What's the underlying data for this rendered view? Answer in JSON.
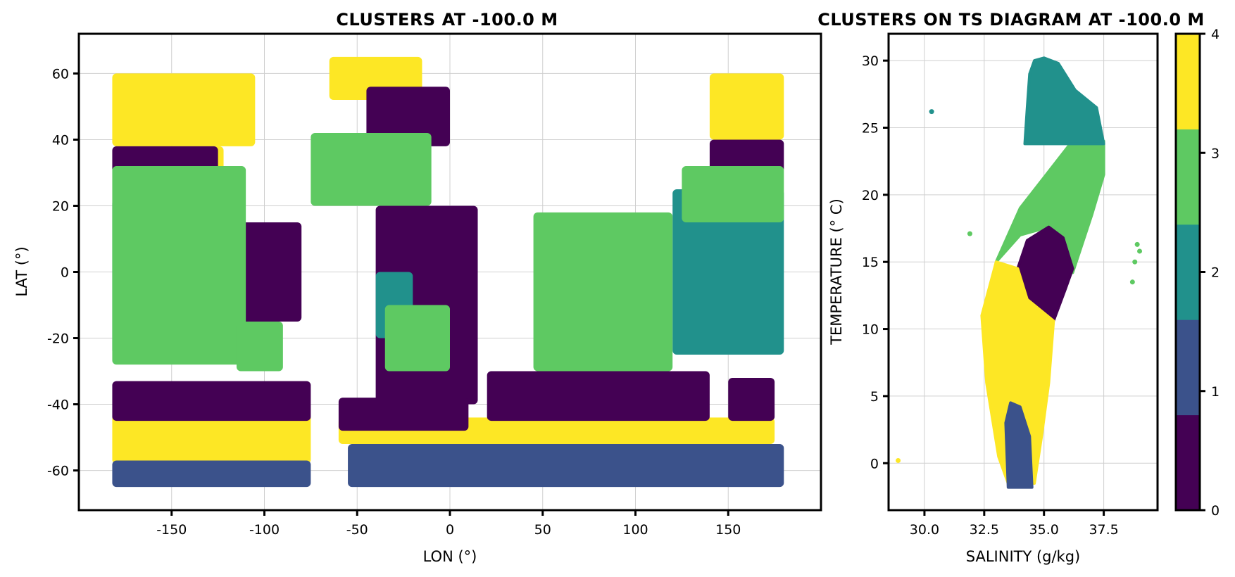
{
  "figure": {
    "cluster_colors": [
      "#440154",
      "#3b528b",
      "#21918c",
      "#5ec962",
      "#fde725"
    ],
    "colorbar": {
      "ticks": [
        "0",
        "1",
        "2",
        "3",
        "4"
      ]
    }
  },
  "chart_data": [
    {
      "type": "scatter",
      "title": "CLUSTERS AT -100.0 M",
      "xlabel": "LON (°)",
      "ylabel": "LAT (°)",
      "xlim": [
        -200,
        200
      ],
      "ylim": [
        -72,
        72
      ],
      "xticks": [
        -150,
        -100,
        -50,
        0,
        50,
        100,
        150
      ],
      "yticks": [
        60,
        40,
        20,
        0,
        -20,
        -40,
        -60
      ],
      "xtick_labels": [
        "-150",
        "-100",
        "-50",
        "0",
        "50",
        "100",
        "150"
      ],
      "ytick_labels": [
        "60",
        "40",
        "20",
        "0",
        "-20",
        "-40",
        "-60"
      ],
      "grid": true,
      "clusters": [
        {
          "cluster": 4,
          "regions": [
            {
              "x": [
                -182,
                -105
              ],
              "y": [
                38,
                60
              ]
            },
            {
              "x": [
                -140,
                -122
              ],
              "y": [
                22,
                38
              ]
            },
            {
              "x": [
                -182,
                -75
              ],
              "y": [
                -58,
                -43
              ]
            },
            {
              "x": [
                -65,
                -15
              ],
              "y": [
                52,
                65
              ]
            },
            {
              "x": [
                140,
                180
              ],
              "y": [
                40,
                60
              ]
            },
            {
              "x": [
                -60,
                175
              ],
              "y": [
                -52,
                -44
              ]
            }
          ]
        },
        {
          "cluster": 1,
          "regions": [
            {
              "x": [
                -182,
                -75
              ],
              "y": [
                -65,
                -57
              ]
            },
            {
              "x": [
                -55,
                180
              ],
              "y": [
                -65,
                -52
              ]
            }
          ]
        },
        {
          "cluster": 0,
          "regions": [
            {
              "x": [
                -182,
                -125
              ],
              "y": [
                30,
                38
              ]
            },
            {
              "x": [
                -130,
                -80
              ],
              "y": [
                -15,
                15
              ]
            },
            {
              "x": [
                -182,
                -75
              ],
              "y": [
                -45,
                -33
              ]
            },
            {
              "x": [
                -45,
                0
              ],
              "y": [
                38,
                56
              ]
            },
            {
              "x": [
                -40,
                15
              ],
              "y": [
                -40,
                20
              ]
            },
            {
              "x": [
                -60,
                10
              ],
              "y": [
                -48,
                -38
              ]
            },
            {
              "x": [
                20,
                140
              ],
              "y": [
                -45,
                -30
              ]
            },
            {
              "x": [
                140,
                180
              ],
              "y": [
                30,
                40
              ]
            },
            {
              "x": [
                150,
                175
              ],
              "y": [
                -45,
                -32
              ]
            }
          ]
        },
        {
          "cluster": 2,
          "regions": [
            {
              "x": [
                -182,
                -115
              ],
              "y": [
                -25,
                22
              ]
            },
            {
              "x": [
                -40,
                -20
              ],
              "y": [
                -20,
                0
              ]
            },
            {
              "x": [
                50,
                105
              ],
              "y": [
                -10,
                15
              ]
            },
            {
              "x": [
                120,
                180
              ],
              "y": [
                -25,
                25
              ]
            }
          ]
        },
        {
          "cluster": 3,
          "regions": [
            {
              "x": [
                -182,
                -110
              ],
              "y": [
                -28,
                32
              ]
            },
            {
              "x": [
                -115,
                -90
              ],
              "y": [
                -30,
                -15
              ]
            },
            {
              "x": [
                -75,
                -10
              ],
              "y": [
                20,
                42
              ]
            },
            {
              "x": [
                -35,
                0
              ],
              "y": [
                -30,
                -10
              ]
            },
            {
              "x": [
                45,
                120
              ],
              "y": [
                -30,
                18
              ]
            },
            {
              "x": [
                125,
                180
              ],
              "y": [
                15,
                32
              ]
            }
          ]
        }
      ]
    },
    {
      "type": "scatter",
      "title": "CLUSTERS ON TS DIAGRAM AT -100.0 M",
      "xlabel": "SALINITY (g/kg)",
      "ylabel": "TEMPERATURE (° C)",
      "xlim": [
        28.5,
        39.75
      ],
      "ylim": [
        -3.5,
        32
      ],
      "xticks": [
        30.0,
        32.5,
        35.0,
        37.5
      ],
      "yticks": [
        30,
        25,
        20,
        15,
        10,
        5,
        0
      ],
      "xtick_labels": [
        "30.0",
        "32.5",
        "35.0",
        "37.5"
      ],
      "ytick_labels": [
        "30",
        "25",
        "20",
        "15",
        "10",
        "5",
        "0"
      ],
      "grid": true,
      "clusters": [
        {
          "cluster": 3,
          "polygon": [
            [
              36.1,
              23.8
            ],
            [
              34.0,
              19.0
            ],
            [
              33.0,
              15.0
            ],
            [
              34.0,
              17.0
            ],
            [
              35.2,
              17.6
            ],
            [
              35.7,
              16.4
            ],
            [
              36.2,
              14.2
            ],
            [
              37.0,
              18.5
            ],
            [
              37.5,
              21.5
            ],
            [
              37.5,
              24.0
            ]
          ]
        },
        {
          "cluster": 2,
          "polygon": [
            [
              35.0,
              30.2
            ],
            [
              34.6,
              30.0
            ],
            [
              34.4,
              29.0
            ],
            [
              34.3,
              26.5
            ],
            [
              34.2,
              23.8
            ],
            [
              37.5,
              23.8
            ],
            [
              37.2,
              26.5
            ],
            [
              36.3,
              27.8
            ],
            [
              35.6,
              29.8
            ]
          ]
        },
        {
          "cluster": 0,
          "polygon": [
            [
              35.2,
              17.6
            ],
            [
              34.3,
              16.6
            ],
            [
              33.9,
              14.5
            ],
            [
              34.3,
              12.2
            ],
            [
              35.4,
              10.6
            ],
            [
              35.9,
              13.0
            ],
            [
              36.2,
              14.5
            ],
            [
              35.8,
              16.8
            ]
          ]
        },
        {
          "cluster": 4,
          "polygon": [
            [
              33.0,
              15.0
            ],
            [
              33.9,
              14.5
            ],
            [
              34.3,
              12.2
            ],
            [
              35.4,
              10.6
            ],
            [
              35.2,
              6.0
            ],
            [
              34.9,
              2.0
            ],
            [
              34.6,
              -1.5
            ],
            [
              33.5,
              -1.5
            ],
            [
              33.1,
              0.5
            ],
            [
              32.6,
              6.0
            ],
            [
              32.4,
              11.0
            ]
          ]
        },
        {
          "cluster": 1,
          "polygon": [
            [
              33.6,
              4.5
            ],
            [
              33.4,
              3.0
            ],
            [
              33.5,
              -1.8
            ],
            [
              34.5,
              -1.8
            ],
            [
              34.4,
              2.0
            ],
            [
              34.0,
              4.2
            ]
          ]
        }
      ],
      "outliers": [
        {
          "x": 30.3,
          "y": 26.2,
          "cluster": 2
        },
        {
          "x": 31.9,
          "y": 17.1,
          "cluster": 3
        },
        {
          "x": 28.9,
          "y": 0.2,
          "cluster": 4
        },
        {
          "x": 38.8,
          "y": 15.0,
          "cluster": 3
        },
        {
          "x": 39.0,
          "y": 15.8,
          "cluster": 3
        },
        {
          "x": 38.7,
          "y": 13.5,
          "cluster": 3
        },
        {
          "x": 38.9,
          "y": 16.3,
          "cluster": 3
        }
      ]
    }
  ]
}
